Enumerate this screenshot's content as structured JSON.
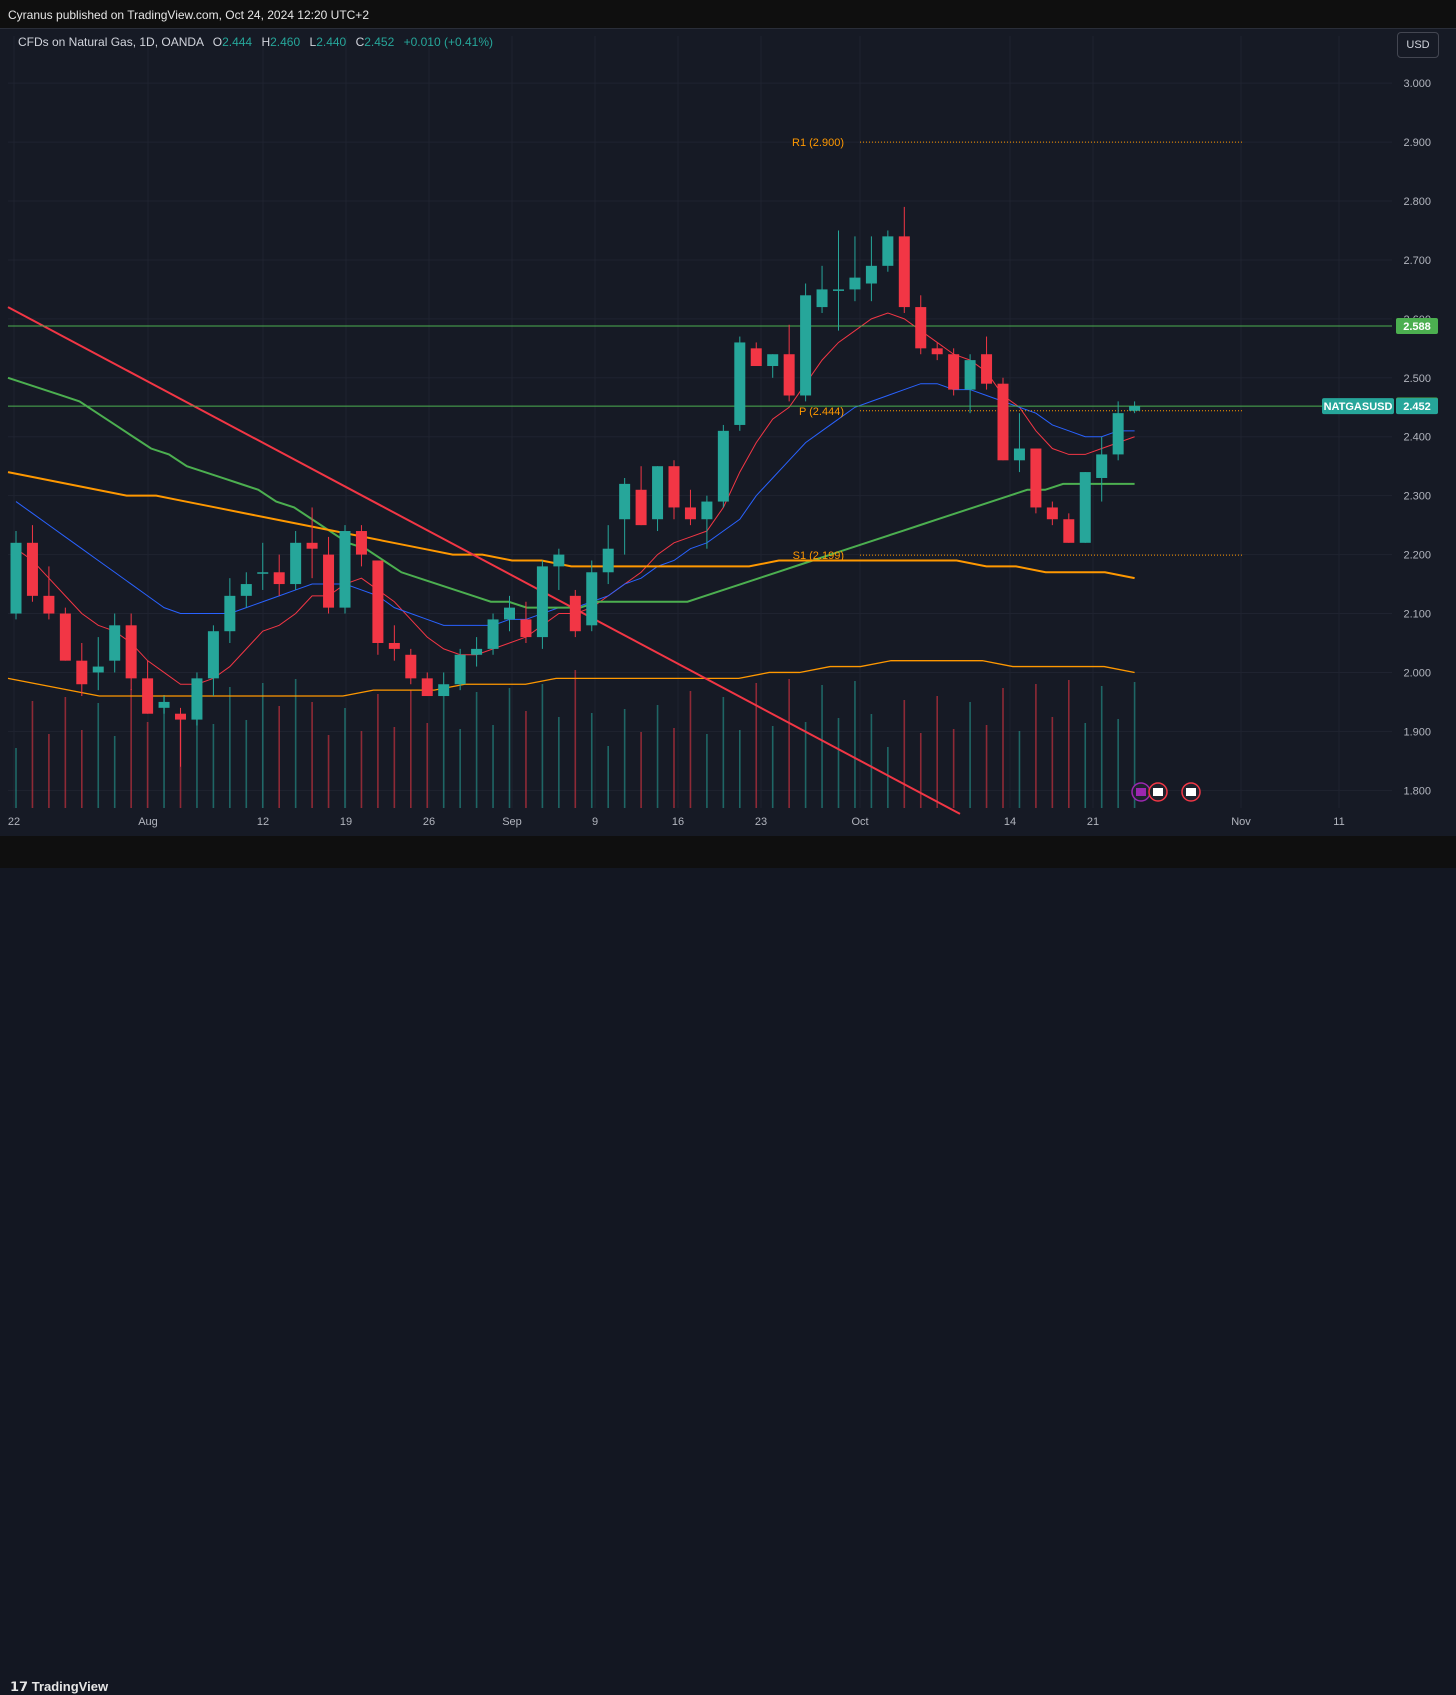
{
  "header": {
    "published": "Cyranus published on TradingView.com, Oct 24, 2024 12:20 UTC+2"
  },
  "legend": {
    "symbol": "CFDs on Natural Gas, 1D, OANDA",
    "o_label": "O",
    "o_value": "2.444",
    "h_label": "H",
    "h_value": "2.460",
    "l_label": "L",
    "l_value": "2.440",
    "c_label": "C",
    "c_value": "2.452",
    "change": "+0.010 (+0.41%)"
  },
  "currency_button": "USD",
  "footer": {
    "brand": "TradingView"
  },
  "colors": {
    "up": "#26a69a",
    "down": "#f23645",
    "ema_fast": "#f23645",
    "ema_mid": "#2962ff",
    "ema_slow": "#4caf50",
    "ema_long": "#ff9800",
    "pivot": "#ff9800",
    "bg": "#161a25"
  },
  "chart_data": {
    "type": "candlestick",
    "symbol": "NATGASUSD",
    "ylim": [
      1.77,
      3.08
    ],
    "y_ticks": [
      "3.000",
      "2.900",
      "2.800",
      "2.700",
      "2.600",
      "2.500",
      "2.400",
      "2.300",
      "2.200",
      "2.100",
      "2.000",
      "1.900",
      "1.800"
    ],
    "x_ticks": [
      "22",
      "Aug",
      "12",
      "19",
      "26",
      "Sep",
      "9",
      "16",
      "23",
      "Oct",
      "14",
      "21",
      "Nov",
      "11"
    ],
    "price_tags": [
      {
        "label": "2.588",
        "value": 2.588,
        "color": "#4caf50"
      },
      {
        "label": "2.453",
        "value": 2.453,
        "color": "#4caf50"
      },
      {
        "label": "2.452",
        "value": 2.452,
        "color": "#26a69a",
        "name": "NATGASUSD"
      }
    ],
    "levels": [
      {
        "label": "R1 (2.900)",
        "value": 2.9
      },
      {
        "label": "P (2.444)",
        "value": 2.444
      },
      {
        "label": "S1 (2.199)",
        "value": 2.199
      }
    ],
    "horizontal_lines": [
      2.588,
      2.452
    ],
    "candles": [
      {
        "o": 2.1,
        "h": 2.24,
        "l": 2.09,
        "c": 2.22
      },
      {
        "o": 2.22,
        "h": 2.25,
        "l": 2.12,
        "c": 2.13
      },
      {
        "o": 2.13,
        "h": 2.18,
        "l": 2.09,
        "c": 2.1
      },
      {
        "o": 2.1,
        "h": 2.11,
        "l": 2.02,
        "c": 2.02
      },
      {
        "o": 2.02,
        "h": 2.05,
        "l": 1.96,
        "c": 1.98
      },
      {
        "o": 2.0,
        "h": 2.06,
        "l": 1.97,
        "c": 2.01
      },
      {
        "o": 2.02,
        "h": 2.1,
        "l": 2.0,
        "c": 2.08
      },
      {
        "o": 2.08,
        "h": 2.1,
        "l": 1.97,
        "c": 1.99
      },
      {
        "o": 1.99,
        "h": 2.02,
        "l": 1.93,
        "c": 1.93
      },
      {
        "o": 1.94,
        "h": 1.96,
        "l": 1.93,
        "c": 1.95
      },
      {
        "o": 1.93,
        "h": 1.94,
        "l": 1.84,
        "c": 1.92
      },
      {
        "o": 1.92,
        "h": 2.0,
        "l": 1.91,
        "c": 1.99
      },
      {
        "o": 1.99,
        "h": 2.08,
        "l": 1.96,
        "c": 2.07
      },
      {
        "o": 2.07,
        "h": 2.16,
        "l": 2.05,
        "c": 2.13
      },
      {
        "o": 2.13,
        "h": 2.17,
        "l": 2.11,
        "c": 2.15
      },
      {
        "o": 2.17,
        "h": 2.22,
        "l": 2.14,
        "c": 2.17
      },
      {
        "o": 2.17,
        "h": 2.2,
        "l": 2.13,
        "c": 2.15
      },
      {
        "o": 2.15,
        "h": 2.24,
        "l": 2.14,
        "c": 2.22
      },
      {
        "o": 2.22,
        "h": 2.28,
        "l": 2.16,
        "c": 2.21
      },
      {
        "o": 2.2,
        "h": 2.23,
        "l": 2.1,
        "c": 2.11
      },
      {
        "o": 2.11,
        "h": 2.25,
        "l": 2.1,
        "c": 2.24
      },
      {
        "o": 2.24,
        "h": 2.25,
        "l": 2.18,
        "c": 2.2
      },
      {
        "o": 2.19,
        "h": 2.19,
        "l": 2.03,
        "c": 2.05
      },
      {
        "o": 2.05,
        "h": 2.08,
        "l": 2.02,
        "c": 2.04
      },
      {
        "o": 2.03,
        "h": 2.04,
        "l": 1.98,
        "c": 1.99
      },
      {
        "o": 1.99,
        "h": 2.0,
        "l": 1.96,
        "c": 1.96
      },
      {
        "o": 1.96,
        "h": 2.0,
        "l": 1.96,
        "c": 1.98
      },
      {
        "o": 1.98,
        "h": 2.04,
        "l": 1.97,
        "c": 2.03
      },
      {
        "o": 2.03,
        "h": 2.06,
        "l": 2.01,
        "c": 2.04
      },
      {
        "o": 2.04,
        "h": 2.1,
        "l": 2.03,
        "c": 2.09
      },
      {
        "o": 2.09,
        "h": 2.13,
        "l": 2.07,
        "c": 2.11
      },
      {
        "o": 2.09,
        "h": 2.12,
        "l": 2.05,
        "c": 2.06
      },
      {
        "o": 2.06,
        "h": 2.19,
        "l": 2.04,
        "c": 2.18
      },
      {
        "o": 2.18,
        "h": 2.21,
        "l": 2.14,
        "c": 2.2
      },
      {
        "o": 2.13,
        "h": 2.14,
        "l": 2.06,
        "c": 2.07
      },
      {
        "o": 2.08,
        "h": 2.19,
        "l": 2.07,
        "c": 2.17
      },
      {
        "o": 2.17,
        "h": 2.25,
        "l": 2.15,
        "c": 2.21
      },
      {
        "o": 2.26,
        "h": 2.33,
        "l": 2.2,
        "c": 2.32
      },
      {
        "o": 2.31,
        "h": 2.35,
        "l": 2.25,
        "c": 2.25
      },
      {
        "o": 2.26,
        "h": 2.35,
        "l": 2.24,
        "c": 2.35
      },
      {
        "o": 2.35,
        "h": 2.36,
        "l": 2.26,
        "c": 2.28
      },
      {
        "o": 2.28,
        "h": 2.31,
        "l": 2.25,
        "c": 2.26
      },
      {
        "o": 2.26,
        "h": 2.3,
        "l": 2.21,
        "c": 2.29
      },
      {
        "o": 2.29,
        "h": 2.42,
        "l": 2.28,
        "c": 2.41
      },
      {
        "o": 2.42,
        "h": 2.57,
        "l": 2.41,
        "c": 2.56
      },
      {
        "o": 2.55,
        "h": 2.56,
        "l": 2.52,
        "c": 2.52
      },
      {
        "o": 2.52,
        "h": 2.54,
        "l": 2.5,
        "c": 2.54
      },
      {
        "o": 2.54,
        "h": 2.59,
        "l": 2.46,
        "c": 2.47
      },
      {
        "o": 2.47,
        "h": 2.66,
        "l": 2.46,
        "c": 2.64
      },
      {
        "o": 2.62,
        "h": 2.69,
        "l": 2.61,
        "c": 2.65
      },
      {
        "o": 2.65,
        "h": 2.75,
        "l": 2.58,
        "c": 2.65
      },
      {
        "o": 2.65,
        "h": 2.74,
        "l": 2.63,
        "c": 2.67
      },
      {
        "o": 2.66,
        "h": 2.74,
        "l": 2.63,
        "c": 2.69
      },
      {
        "o": 2.69,
        "h": 2.75,
        "l": 2.68,
        "c": 2.74
      },
      {
        "o": 2.74,
        "h": 2.79,
        "l": 2.61,
        "c": 2.62
      },
      {
        "o": 2.62,
        "h": 2.64,
        "l": 2.54,
        "c": 2.55
      },
      {
        "o": 2.55,
        "h": 2.56,
        "l": 2.53,
        "c": 2.54
      },
      {
        "o": 2.54,
        "h": 2.55,
        "l": 2.47,
        "c": 2.48
      },
      {
        "o": 2.48,
        "h": 2.54,
        "l": 2.44,
        "c": 2.53
      },
      {
        "o": 2.54,
        "h": 2.57,
        "l": 2.48,
        "c": 2.49
      },
      {
        "o": 2.49,
        "h": 2.5,
        "l": 2.36,
        "c": 2.36
      },
      {
        "o": 2.36,
        "h": 2.44,
        "l": 2.34,
        "c": 2.38
      },
      {
        "o": 2.38,
        "h": 2.38,
        "l": 2.27,
        "c": 2.28
      },
      {
        "o": 2.28,
        "h": 2.29,
        "l": 2.25,
        "c": 2.26
      },
      {
        "o": 2.26,
        "h": 2.27,
        "l": 2.22,
        "c": 2.22
      },
      {
        "o": 2.22,
        "h": 2.34,
        "l": 2.22,
        "c": 2.34
      },
      {
        "o": 2.33,
        "h": 2.4,
        "l": 2.29,
        "c": 2.37
      },
      {
        "o": 2.37,
        "h": 2.46,
        "l": 2.36,
        "c": 2.44
      },
      {
        "o": 2.444,
        "h": 2.46,
        "l": 2.44,
        "c": 2.452
      }
    ],
    "ema_fast": [
      2.21,
      2.19,
      2.16,
      2.13,
      2.1,
      2.08,
      2.07,
      2.05,
      2.02,
      2.0,
      1.98,
      1.98,
      1.99,
      2.01,
      2.04,
      2.07,
      2.08,
      2.1,
      2.13,
      2.13,
      2.15,
      2.16,
      2.14,
      2.12,
      2.09,
      2.06,
      2.04,
      2.03,
      2.03,
      2.04,
      2.05,
      2.06,
      2.08,
      2.1,
      2.1,
      2.11,
      2.13,
      2.15,
      2.17,
      2.2,
      2.22,
      2.23,
      2.24,
      2.28,
      2.34,
      2.39,
      2.43,
      2.45,
      2.49,
      2.53,
      2.56,
      2.58,
      2.6,
      2.61,
      2.6,
      2.58,
      2.56,
      2.54,
      2.53,
      2.51,
      2.47,
      2.45,
      2.41,
      2.38,
      2.37,
      2.37,
      2.38,
      2.39,
      2.4
    ],
    "ema_mid": [
      2.29,
      2.27,
      2.25,
      2.23,
      2.21,
      2.19,
      2.17,
      2.15,
      2.13,
      2.11,
      2.1,
      2.1,
      2.1,
      2.1,
      2.11,
      2.12,
      2.13,
      2.14,
      2.15,
      2.15,
      2.15,
      2.14,
      2.13,
      2.11,
      2.1,
      2.09,
      2.08,
      2.08,
      2.08,
      2.08,
      2.09,
      2.09,
      2.1,
      2.11,
      2.11,
      2.12,
      2.13,
      2.15,
      2.16,
      2.18,
      2.19,
      2.21,
      2.22,
      2.24,
      2.26,
      2.3,
      2.33,
      2.36,
      2.39,
      2.41,
      2.43,
      2.45,
      2.46,
      2.47,
      2.48,
      2.49,
      2.49,
      2.48,
      2.48,
      2.47,
      2.46,
      2.45,
      2.44,
      2.42,
      2.41,
      2.4,
      2.4,
      2.41,
      2.41
    ],
    "ema_slow": [
      2.5,
      2.49,
      2.48,
      2.47,
      2.46,
      2.44,
      2.42,
      2.4,
      2.38,
      2.37,
      2.35,
      2.34,
      2.33,
      2.32,
      2.31,
      2.29,
      2.28,
      2.26,
      2.24,
      2.22,
      2.21,
      2.19,
      2.17,
      2.16,
      2.15,
      2.14,
      2.13,
      2.12,
      2.12,
      2.11,
      2.11,
      2.11,
      2.11,
      2.12,
      2.12,
      2.12,
      2.12,
      2.12,
      2.12,
      2.13,
      2.14,
      2.15,
      2.16,
      2.17,
      2.18,
      2.19,
      2.2,
      2.21,
      2.22,
      2.23,
      2.24,
      2.25,
      2.26,
      2.27,
      2.28,
      2.29,
      2.3,
      2.31,
      2.31,
      2.32,
      2.32,
      2.32,
      2.32,
      2.32
    ],
    "ema_long": [
      2.34,
      2.33,
      2.32,
      2.31,
      2.3,
      2.3,
      2.29,
      2.28,
      2.27,
      2.26,
      2.25,
      2.24,
      2.23,
      2.22,
      2.21,
      2.2,
      2.2,
      2.19,
      2.19,
      2.18,
      2.18,
      2.18,
      2.18,
      2.18,
      2.18,
      2.18,
      2.19,
      2.19,
      2.19,
      2.19,
      2.19,
      2.19,
      2.19,
      2.18,
      2.18,
      2.17,
      2.17,
      2.17,
      2.16
    ],
    "ema_long_2": [
      1.99,
      1.98,
      1.97,
      1.96,
      1.96,
      1.96,
      1.96,
      1.96,
      1.96,
      1.96,
      1.96,
      1.96,
      1.97,
      1.97,
      1.97,
      1.98,
      1.98,
      1.98,
      1.99,
      1.99,
      1.99,
      1.99,
      1.99,
      1.99,
      1.99,
      2.0,
      2.0,
      2.01,
      2.01,
      2.02,
      2.02,
      2.02,
      2.02,
      2.01,
      2.01,
      2.01,
      2.01,
      2.0
    ],
    "trendline": {
      "from": 2.62,
      "to": 1.76
    }
  }
}
